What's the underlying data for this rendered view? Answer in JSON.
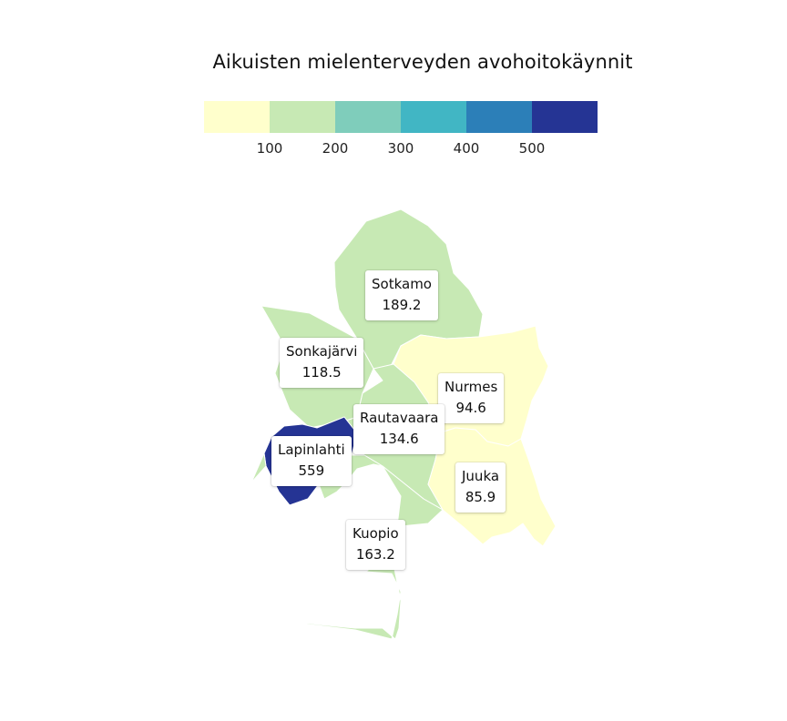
{
  "title": "Aikuisten mielenterveyden avohoitokäynnit",
  "legend": {
    "ticks": [
      "100",
      "200",
      "300",
      "400",
      "500"
    ],
    "bins": [
      {
        "from": 0,
        "to": 100,
        "color": "#ffffcc"
      },
      {
        "from": 100,
        "to": 200,
        "color": "#c7e9b4"
      },
      {
        "from": 200,
        "to": 300,
        "color": "#7fcdbb"
      },
      {
        "from": 300,
        "to": 400,
        "color": "#41b6c4"
      },
      {
        "from": 400,
        "to": 500,
        "color": "#2c7fb8"
      },
      {
        "from": 500,
        "to": 600,
        "color": "#253494"
      }
    ]
  },
  "regions": [
    {
      "name": "Sotkamo",
      "value": "189.2"
    },
    {
      "name": "Sonkajärvi",
      "value": "118.5"
    },
    {
      "name": "Nurmes",
      "value": "94.6"
    },
    {
      "name": "Rautavaara",
      "value": "134.6"
    },
    {
      "name": "Lapinlahti",
      "value": "559"
    },
    {
      "name": "Juuka",
      "value": "85.9"
    },
    {
      "name": "Kuopio",
      "value": "163.2"
    }
  ]
}
